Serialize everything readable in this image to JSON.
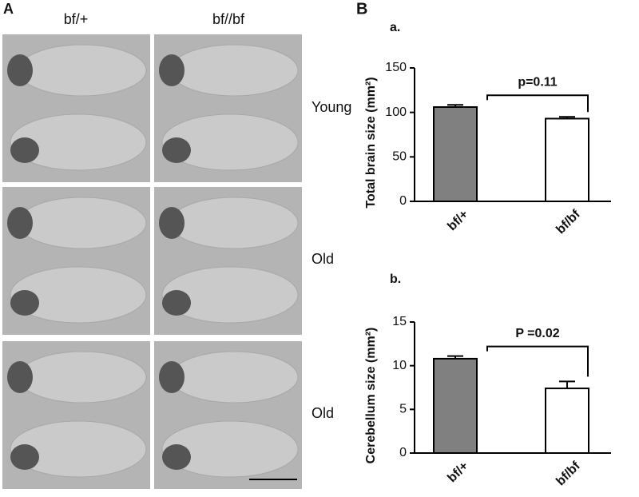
{
  "panel_a": {
    "label": "A",
    "columns": [
      "bf/+",
      "bf//bf"
    ],
    "rows": [
      "Young",
      "Old",
      "Old"
    ]
  },
  "panel_b_label": "B",
  "chart_data": [
    {
      "type": "bar",
      "panel_label": "a.",
      "ylabel": "Total brain size (mm²)",
      "categories": [
        "bf/+",
        "bf/bf"
      ],
      "values": [
        106,
        93
      ],
      "errors": [
        2.5,
        2
      ],
      "colors": [
        "#808080",
        "#ffffff"
      ],
      "ylim": [
        0,
        150
      ],
      "yticks": [
        0,
        50,
        100,
        150
      ],
      "annotation": "p=0.11"
    },
    {
      "type": "bar",
      "panel_label": "b.",
      "ylabel": "Cerebellum size (mm²)",
      "categories": [
        "bf/+",
        "bf/bf"
      ],
      "values": [
        10.8,
        7.4
      ],
      "errors": [
        0.3,
        0.8
      ],
      "colors": [
        "#808080",
        "#ffffff"
      ],
      "ylim": [
        0,
        15
      ],
      "yticks": [
        0,
        5,
        10,
        15
      ],
      "annotation": "P =0.02"
    }
  ]
}
